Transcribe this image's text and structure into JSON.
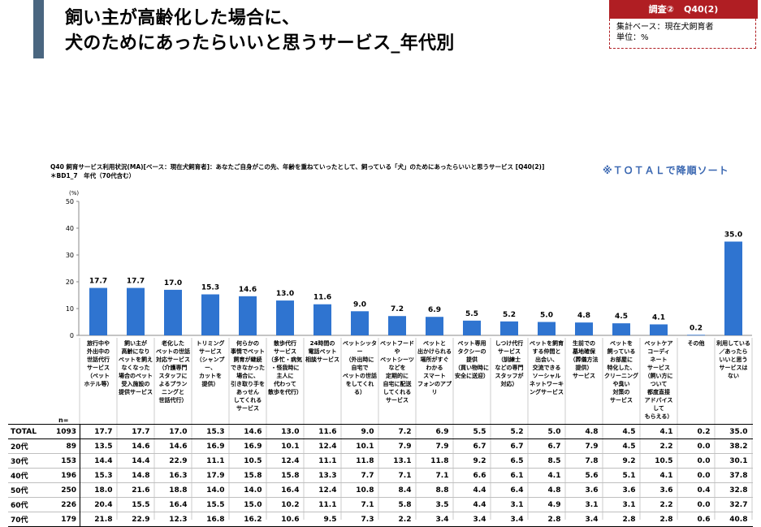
{
  "header": {
    "title_line1": "飼い主が高齢化した場合に、",
    "title_line2": "犬のためにあったらいいと思うサービス_年代別",
    "badge_survey": "調査②",
    "badge_question": "Q40(2)",
    "base_label": "集計ベース：現在犬飼育者",
    "unit_label": "単位：%"
  },
  "question_text": "Q40 飼育サービス利用状況(MA)[ベース：現在犬飼育者]：あなたご自身がこの先、年齢を重ねていったとして、飼っている「犬」のためにあったらいいと思うサービス [Q40(2)]",
  "cross_axis_text": "＊BD1_7　年代（70代含む）",
  "sort_note": "※ＴＯＴＡＬで降順ソート",
  "n_label": "n=",
  "colors": {
    "bar": "#2f74d0",
    "badge": "#b01e23",
    "note": "#3a67b1"
  },
  "chart_data": {
    "type": "bar",
    "ylabel": "(%)",
    "ylim": [
      0,
      50
    ],
    "yticks": [
      0,
      10,
      20,
      30,
      40,
      50
    ],
    "categories": [
      "旅行中や外出中の世話代行サービス（ペットホテル等）",
      "飼い主が高齢になりペットを飼えなくなった場合のペット受入施設の提供サービス",
      "老化したペットの世話対応サービス（介護専門スタッフによるプランニングと世話代行）",
      "トリミングサービス（シャンプー、カットを提供）",
      "何らかの事情でペット飼育が継続できなかった場合に、引き取り手をあっせんしてくれるサービス",
      "散歩代行サービス（多忙・病気・怪我時に主人に代わって散歩を代行）",
      "24時間の電話ペット相談サービス",
      "ペットシッター（外出時に自宅でペットの世話をしてくれる）",
      "ペットフードやペットシーツなどを定期的に自宅に配送してくれるサービス",
      "ペットと出かけられる場所がすぐわかるスマートフォンのアプリ",
      "ペット専用タクシーの提供（買い物時に安全に送迎）",
      "しつけ代行サービス（訓練士などの専門スタッフが対応）",
      "ペットを飼育する仲間と出会い、交流できるソーシャルネットワーキングサービス",
      "生前での墓地確保（葬儀方法提供）サービス",
      "ペットを飼っているお部屋に特化した、クリーニングや臭い対策のサービス",
      "ペットケアコーディネートサービス（飼い方について都度直接アドバイスしてもらえる）",
      "その他",
      "利用している／あったらいいと思うサービスはない"
    ],
    "category_lines": [
      [
        "旅行中や",
        "外出中の",
        "世話代行",
        "サービス",
        "（ペット",
        "ホテル等）"
      ],
      [
        "飼い主が",
        "高齢になり",
        "ペットを飼え",
        "なくなった",
        "場合のペット",
        "受入施設の",
        "提供サービス"
      ],
      [
        "老化した",
        "ペットの世話",
        "対応サービス",
        "（介護専門",
        "スタッフに",
        "よるプラン",
        "ニングと",
        "世話代行）"
      ],
      [
        "トリミング",
        "サービス",
        "（シャンプー、",
        "カットを",
        "提供）"
      ],
      [
        "何らかの",
        "事情でペット",
        "飼育が継続",
        "できなかった",
        "場合に、",
        "引き取り手を",
        "あっせん",
        "してくれる",
        "サービス"
      ],
      [
        "散歩代行",
        "サービス",
        "（多忙・病気",
        "・怪我時に",
        "主人に",
        "代わって",
        "散歩を代行）"
      ],
      [
        "24時間の",
        "電話ペット",
        "相談サービス"
      ],
      [
        "ペットシッター",
        "（外出時に",
        "自宅で",
        "ペットの世話",
        "をしてくれる）"
      ],
      [
        "ペットフードや",
        "ペットシーツ",
        "などを",
        "定期的に",
        "自宅に配送",
        "してくれる",
        "サービス"
      ],
      [
        "ペットと",
        "出かけられる",
        "場所がすぐ",
        "わかる",
        "スマート",
        "フォンのアプリ"
      ],
      [
        "ペット専用",
        "タクシーの",
        "提供",
        "（買い物時に",
        "安全に送迎）"
      ],
      [
        "しつけ代行",
        "サービス",
        "（訓練士",
        "などの専門",
        "スタッフが",
        "対応）"
      ],
      [
        "ペットを飼育",
        "する仲間と",
        "出会い、",
        "交流できる",
        "ソーシャル",
        "ネットワーキ",
        "ングサービス"
      ],
      [
        "生前での",
        "墓地確保",
        "（葬儀方法",
        "提供）",
        "サービス"
      ],
      [
        "ペットを",
        "飼っている",
        "お部屋に",
        "特化した、",
        "クリーニング",
        "や臭い",
        "対策の",
        "サービス"
      ],
      [
        "ペットケア",
        "コーディ",
        "ネート",
        "サービス",
        "（飼い方に",
        "ついて",
        "都度直接",
        "アドバイス",
        "して",
        "もらえる）"
      ],
      [
        "その他"
      ],
      [
        "利用している",
        "／あったら",
        "いいと思う",
        "サービスは",
        "ない"
      ]
    ],
    "values": [
      17.7,
      17.7,
      17.0,
      15.3,
      14.6,
      13.0,
      11.6,
      9.0,
      7.2,
      6.9,
      5.5,
      5.2,
      5.0,
      4.8,
      4.5,
      4.1,
      0.2,
      35.0
    ],
    "value_labels": [
      "17.7",
      "17.7",
      "17.0",
      "15.3",
      "14.6",
      "13.0",
      "11.6",
      "9.0",
      "7.2",
      "6.9",
      "5.5",
      "5.2",
      "5.0",
      "4.8",
      "4.5",
      "4.1",
      "0.2",
      "35.0"
    ],
    "table": [
      {
        "label": "TOTAL",
        "n": "1093",
        "values": [
          "17.7",
          "17.7",
          "17.0",
          "15.3",
          "14.6",
          "13.0",
          "11.6",
          "9.0",
          "7.2",
          "6.9",
          "5.5",
          "5.2",
          "5.0",
          "4.8",
          "4.5",
          "4.1",
          "0.2",
          "35.0"
        ]
      },
      {
        "label": "20代",
        "n": "89",
        "values": [
          "13.5",
          "14.6",
          "14.6",
          "16.9",
          "16.9",
          "10.1",
          "12.4",
          "10.1",
          "7.9",
          "7.9",
          "6.7",
          "6.7",
          "6.7",
          "7.9",
          "4.5",
          "2.2",
          "0.0",
          "38.2"
        ]
      },
      {
        "label": "30代",
        "n": "153",
        "values": [
          "14.4",
          "14.4",
          "22.9",
          "11.1",
          "10.5",
          "12.4",
          "11.1",
          "11.8",
          "13.1",
          "11.8",
          "9.2",
          "6.5",
          "8.5",
          "7.8",
          "9.2",
          "10.5",
          "0.0",
          "30.1"
        ]
      },
      {
        "label": "40代",
        "n": "196",
        "values": [
          "15.3",
          "14.8",
          "16.3",
          "17.9",
          "15.8",
          "15.8",
          "13.3",
          "7.7",
          "7.1",
          "7.1",
          "6.6",
          "6.1",
          "4.1",
          "5.6",
          "5.1",
          "4.1",
          "0.0",
          "37.8"
        ]
      },
      {
        "label": "50代",
        "n": "250",
        "values": [
          "18.0",
          "21.6",
          "18.8",
          "14.0",
          "14.0",
          "16.4",
          "12.4",
          "10.8",
          "8.4",
          "8.8",
          "4.4",
          "6.4",
          "4.8",
          "3.6",
          "3.6",
          "3.6",
          "0.4",
          "32.8"
        ]
      },
      {
        "label": "60代",
        "n": "226",
        "values": [
          "20.4",
          "15.5",
          "16.4",
          "15.5",
          "15.0",
          "10.2",
          "11.1",
          "7.1",
          "5.8",
          "3.5",
          "4.4",
          "3.1",
          "4.9",
          "3.1",
          "3.1",
          "2.2",
          "0.0",
          "32.7"
        ]
      },
      {
        "label": "70代",
        "n": "179",
        "values": [
          "21.8",
          "22.9",
          "12.3",
          "16.8",
          "16.2",
          "10.6",
          "9.5",
          "7.3",
          "2.2",
          "3.4",
          "3.4",
          "3.4",
          "2.8",
          "3.4",
          "2.8",
          "2.8",
          "0.6",
          "40.8"
        ]
      }
    ]
  }
}
